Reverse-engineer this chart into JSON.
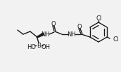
{
  "bg_color": "#f2f2f2",
  "line_color": "#1a1a1a",
  "lw": 1.0,
  "fs": 6.0,
  "figsize": [
    1.72,
    1.03
  ],
  "dpi": 100,
  "xlim": [
    0,
    172
  ],
  "ylim": [
    0,
    103
  ]
}
